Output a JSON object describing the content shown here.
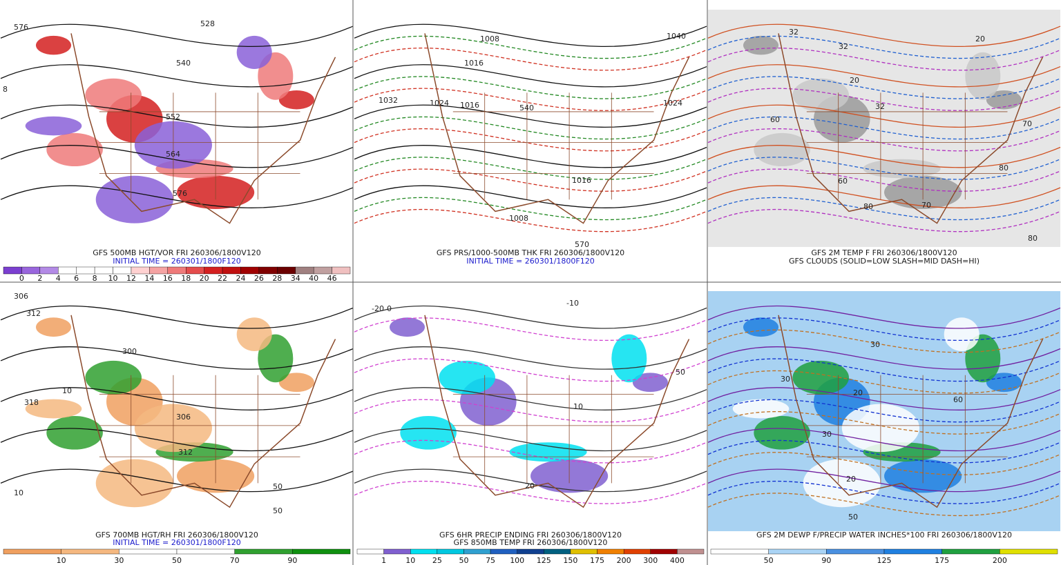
{
  "panels": [
    {
      "caption": [
        {
          "text": "GFS 500MB HGT/VOR FRI 260306/1800V120",
          "color": "#1a1a1a"
        },
        {
          "text": "INITIAL TIME = 260301/1800F120",
          "color": "#1a1acc"
        }
      ],
      "colorbar": {
        "labels": [
          0,
          2,
          4,
          6,
          8,
          10,
          12,
          14,
          16,
          18,
          20,
          22,
          24,
          26,
          28,
          34,
          40,
          46
        ],
        "colors": [
          "#7b3fd0",
          "#9966dd",
          "#b38ae6",
          "#ffffff",
          "#ffffff",
          "#ffffff",
          "#ffffff",
          "#ffd1d1",
          "#f5a3a3",
          "#ef7a7a",
          "#e44c4c",
          "#d42020",
          "#c01010",
          "#a00000",
          "#800000",
          "#6b0000",
          "#a08080",
          "#c0a0a0",
          "#f0c0c0"
        ]
      },
      "map_labels": [
        "576",
        "528",
        "540",
        "552",
        "564",
        "576",
        "8"
      ]
    },
    {
      "caption": [
        {
          "text": "GFS PRS/1000-500MB THK FRI 260306/1800V120",
          "color": "#1a1a1a"
        },
        {
          "text": "INITIAL TIME = 260301/1800F120",
          "color": "#1a1acc"
        }
      ],
      "map_labels": [
        "1032",
        "1008",
        "1016",
        "1024",
        "1016",
        "1016",
        "1024",
        "1040",
        "1008",
        "540",
        "570"
      ]
    },
    {
      "caption": [
        {
          "text": "GFS 2M TEMP F FRI 260306/1800V120",
          "color": "#1a1a1a"
        },
        {
          "text": "GFS CLOUDS (SOLID=LOW SLASH=MID DASH=HI)",
          "color": "#1a1a1a"
        }
      ],
      "map_labels": [
        "32",
        "32",
        "20",
        "20",
        "32",
        "60",
        "60",
        "70",
        "80",
        "70",
        "80",
        "80"
      ]
    },
    {
      "caption": [
        {
          "text": "GFS 700MB HGT/RH FRI 260306/1800V120",
          "color": "#1a1a1a"
        },
        {
          "text": "INITIAL TIME = 260301/1800F120",
          "color": "#1a1acc"
        }
      ],
      "colorbar": {
        "labels": [
          10,
          30,
          50,
          70,
          90
        ],
        "colors": [
          "#f0a060",
          "#f5b880",
          "#ffffff",
          "#ffffff",
          "#30a030",
          "#109010"
        ]
      },
      "map_labels": [
        "306",
        "312",
        "318",
        "300",
        "306",
        "312",
        "50",
        "50",
        "10",
        "10"
      ]
    },
    {
      "caption": [
        {
          "text": "GFS 6HR PRECIP ENDING FRI 260306/1800V120",
          "color": "#1a1a1a"
        },
        {
          "text": "GFS 850MB TEMP FRI 260306/1800V120",
          "color": "#1a1a1a"
        }
      ],
      "colorbar": {
        "labels": [
          1,
          10,
          25,
          50,
          75,
          100,
          125,
          150,
          175,
          200,
          300,
          400
        ],
        "colors": [
          "#ffffff",
          "#8060d0",
          "#00e0f0",
          "#00c8e0",
          "#30a0d0",
          "#2060c0",
          "#104090",
          "#006080",
          "#e0c000",
          "#f08000",
          "#e04000",
          "#a00000",
          "#c09090"
        ]
      },
      "map_labels": [
        "-20",
        "0",
        "-10",
        "10",
        "20",
        "50"
      ]
    },
    {
      "caption": [
        {
          "text": "GFS 2M DEWP F/PRECIP WATER INCHES*100 FRI 260306/1800V120",
          "color": "#1a1a1a"
        }
      ],
      "colorbar": {
        "labels": [
          50,
          90,
          125,
          175,
          200
        ],
        "colors": [
          "#ffffff",
          "#aad4f5",
          "#4a90e0",
          "#2080e0",
          "#20a040",
          "#e0e000"
        ]
      },
      "map_labels": [
        "30",
        "30",
        "20",
        "20",
        "30",
        "60",
        "50"
      ]
    }
  ]
}
